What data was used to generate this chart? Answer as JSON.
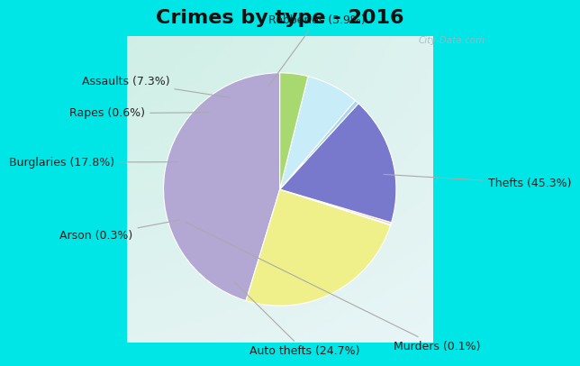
{
  "title": "Crimes by type - 2016",
  "labels": [
    "Thefts",
    "Auto thefts",
    "Murders",
    "Arson",
    "Burglaries",
    "Rapes",
    "Assaults",
    "Robberies"
  ],
  "values": [
    45.3,
    24.7,
    0.1,
    0.3,
    17.8,
    0.6,
    7.3,
    3.9
  ],
  "colors": [
    "#b3a8d4",
    "#f0f08a",
    "#d4c4b0",
    "#f5c8a8",
    "#7878cc",
    "#a8d8f0",
    "#c8ecf8",
    "#a8d870"
  ],
  "background_outer": "#00e5e5",
  "title_fontsize": 16,
  "label_fontsize": 9,
  "watermark": "City-Data.com",
  "label_info": {
    "Thefts": [
      1.55,
      -0.05,
      "left"
    ],
    "Auto thefts": [
      0.05,
      -1.42,
      "center"
    ],
    "Murders": [
      0.78,
      -1.38,
      "left"
    ],
    "Arson": [
      -1.35,
      -0.48,
      "right"
    ],
    "Burglaries": [
      -1.5,
      0.12,
      "right"
    ],
    "Rapes": [
      -1.25,
      0.52,
      "right"
    ],
    "Assaults": [
      -1.05,
      0.78,
      "right"
    ],
    "Robberies": [
      0.15,
      1.28,
      "center"
    ]
  }
}
